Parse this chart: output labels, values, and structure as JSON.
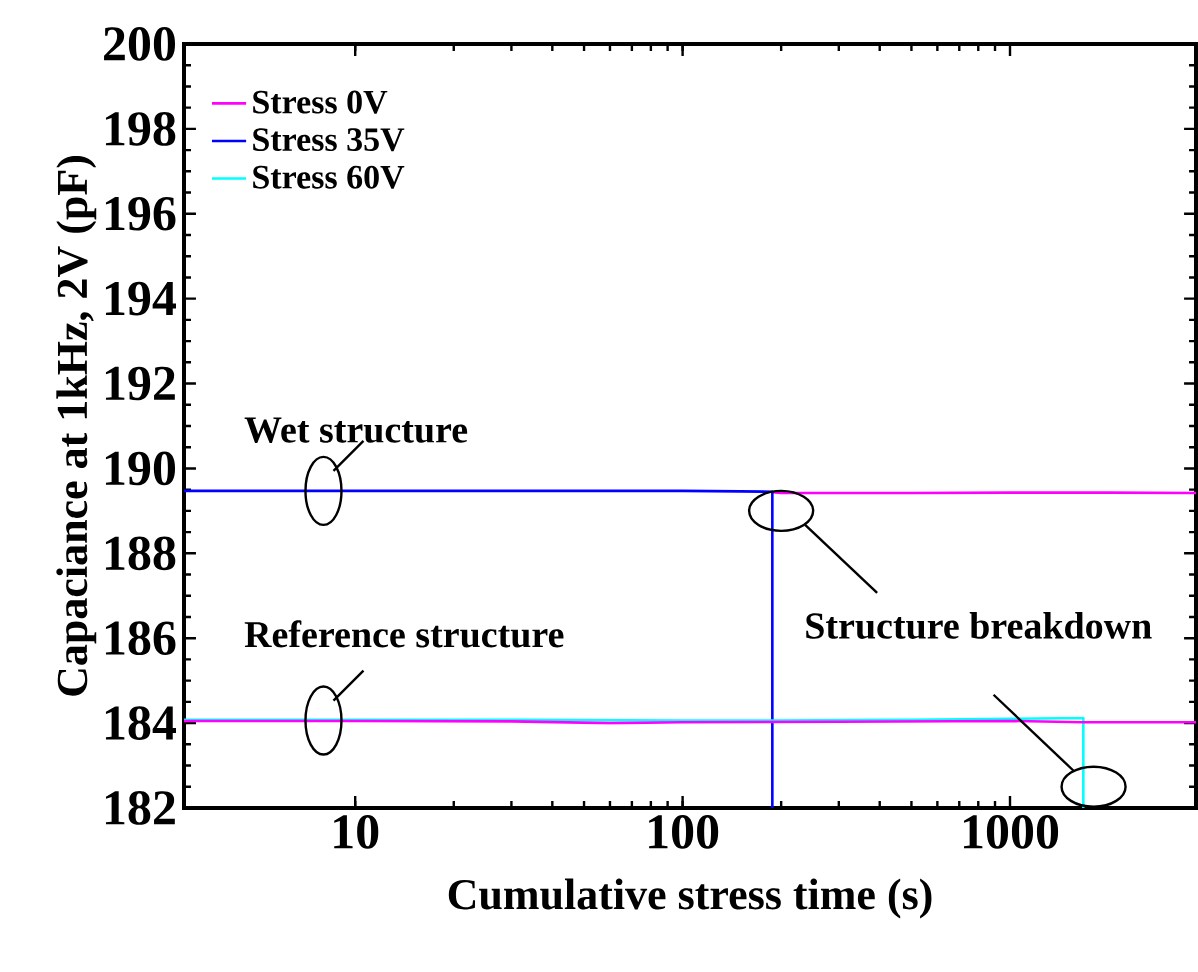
{
  "chart_data": {
    "type": "line",
    "xlabel": "Cumulative stress time (s)",
    "ylabel": "Capaciance at 1kHz, 2V (pF)",
    "log": "x",
    "xlim": [
      3,
      3700
    ],
    "xticks": [
      10,
      100,
      1000
    ],
    "ylim": [
      182,
      200
    ],
    "yticks": [
      182,
      184,
      186,
      188,
      190,
      192,
      194,
      196,
      198,
      200
    ],
    "grid": false,
    "legend": "top left",
    "line_style": "solid",
    "marker": "none",
    "series": [
      {
        "name": "Stress 0V",
        "color": "#ff00ff",
        "x": [
          188,
          200,
          300,
          500,
          1000,
          2000,
          3700
        ],
        "values": [
          189.44,
          189.42,
          189.42,
          189.42,
          189.43,
          189.43,
          189.42
        ]
      },
      {
        "name": "Stress 35V",
        "color": "#0000ff",
        "x": [
          3,
          10,
          30,
          60,
          100,
          150,
          188,
          188
        ],
        "values": [
          189.47,
          189.47,
          189.47,
          189.47,
          189.47,
          189.46,
          189.45,
          182
        ]
      },
      {
        "name": "Stress 60V",
        "color": "#00ffff",
        "x": [
          3,
          10,
          30,
          100,
          188,
          500,
          1000,
          1675,
          1675
        ],
        "values": [
          184.08,
          184.08,
          184.08,
          184.06,
          184.06,
          184.08,
          184.1,
          184.12,
          182
        ]
      },
      {
        "color": "#ff00ff",
        "x": [
          3,
          10,
          30,
          60,
          100,
          300,
          1000,
          1675,
          3700
        ],
        "values": [
          184.05,
          184.05,
          184.04,
          184.0,
          184.02,
          184.03,
          184.05,
          184.02,
          184.02
        ]
      }
    ],
    "annotations": [
      "Wet structure",
      "Reference structure",
      "Structure breakdown"
    ]
  }
}
